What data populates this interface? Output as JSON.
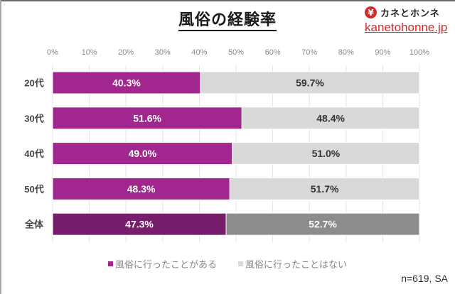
{
  "header": {
    "title": "風俗の経験率"
  },
  "brand": {
    "icon": "yen-icon",
    "icon_glyph": "¥",
    "name": "カネとホンネ",
    "url_text": "kanetohonne.jp",
    "color": "#d42a2a"
  },
  "note": "n=619, SA",
  "chart_data": {
    "type": "bar",
    "orientation": "horizontal",
    "stacked": true,
    "title": "風俗の経験率",
    "xlabel": "",
    "ylabel": "",
    "xlim": [
      0,
      100
    ],
    "x_ticks": [
      "0%",
      "10%",
      "20%",
      "30%",
      "40%",
      "50%",
      "60%",
      "70%",
      "80%",
      "90%",
      "100%"
    ],
    "grid": true,
    "legend_position": "bottom",
    "categories": [
      "20代",
      "30代",
      "40代",
      "50代",
      "全体"
    ],
    "series": [
      {
        "name": "風俗に行ったことがある",
        "values": [
          40.3,
          51.6,
          49.0,
          48.3,
          47.3
        ],
        "labels": [
          "40.3%",
          "51.6%",
          "49.0%",
          "48.3%",
          "47.3%"
        ],
        "color": "#a1278f",
        "total_color": "#781d6b",
        "label_color": "#ffffff"
      },
      {
        "name": "風俗に行ったことはない",
        "values": [
          59.7,
          48.4,
          51.0,
          51.7,
          52.7
        ],
        "labels": [
          "59.7%",
          "48.4%",
          "51.0%",
          "51.7%",
          "52.7%"
        ],
        "color": "#d9d9d9",
        "total_color": "#8c8c8c",
        "label_color": "#333333",
        "total_label_color": "#ffffff"
      }
    ],
    "legend": [
      "風俗に行ったことがある",
      "風俗に行ったことはない"
    ]
  }
}
